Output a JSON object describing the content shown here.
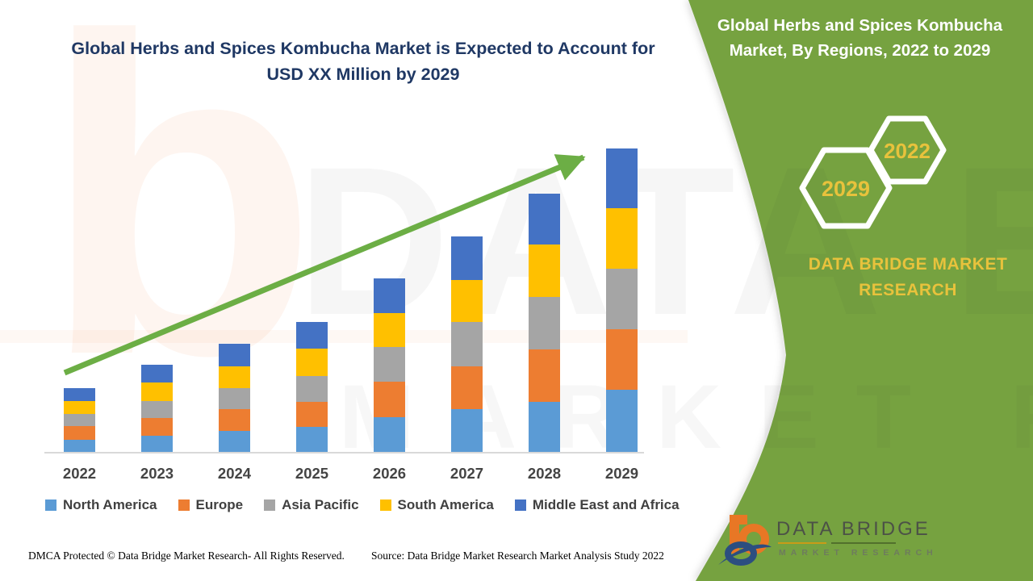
{
  "page": {
    "background_color": "#FFFFFF",
    "title_line1": "Global Herbs and Spices Kombucha Market is Expected to Account for",
    "title_line2": "USD XX Million by 2029",
    "title_color": "#1F3864",
    "footer_dmca": "DMCA Protected © Data Bridge Market Research- All Rights Reserved.",
    "footer_source": "Source: Data Bridge Market Research Market Analysis Study 2022"
  },
  "side_panel": {
    "background_color": "#76A240",
    "title_line1": "Global Herbs and Spices Kombucha",
    "title_line2": "Market, By Regions, 2022 to 2029",
    "hexagons": [
      {
        "label": "2029"
      },
      {
        "label": "2022"
      }
    ],
    "hexagon_label_color": "#E8C23C",
    "brand_text_line1": "DATA BRIDGE MARKET",
    "brand_text_line2": "RESEARCH",
    "brand_text_color": "#E8C23C"
  },
  "logo": {
    "title": "DATA BRIDGE",
    "subtitle": "MARKET RESEARCH"
  },
  "watermark": {
    "big_letter": "b",
    "line1": "DATA BRIDGE",
    "line2": "MARKET RESEARCH"
  },
  "chart_data": {
    "type": "bar",
    "stacked": true,
    "title": "",
    "xlabel": "",
    "ylabel": "",
    "y_axis_visible": false,
    "values_unit": "relative height units (no value axis or data labels shown in figure)",
    "legend_position": "bottom",
    "grid": false,
    "categories": [
      "2022",
      "2023",
      "2024",
      "2025",
      "2026",
      "2027",
      "2028",
      "2029"
    ],
    "series": [
      {
        "name": "North America",
        "color": "#5B9BD5",
        "values": [
          15,
          20,
          26,
          31,
          43,
          53,
          62,
          77
        ]
      },
      {
        "name": "Europe",
        "color": "#ED7D31",
        "values": [
          17,
          22,
          27,
          31,
          44,
          53,
          65,
          75
        ]
      },
      {
        "name": "Asia Pacific",
        "color": "#A5A5A5",
        "values": [
          15,
          21,
          26,
          32,
          43,
          55,
          65,
          75
        ]
      },
      {
        "name": "South America",
        "color": "#FFC000",
        "values": [
          16,
          23,
          27,
          34,
          42,
          52,
          65,
          75
        ]
      },
      {
        "name": "Middle East and Africa",
        "color": "#4472C4",
        "values": [
          16,
          22,
          28,
          33,
          43,
          54,
          63,
          74
        ]
      }
    ],
    "totals": [
      79,
      108,
      134,
      161,
      215,
      267,
      320,
      376
    ],
    "trend_arrow": {
      "from_category": "2022",
      "to_category": "2029",
      "direction": "up",
      "color": "#6CAE45"
    }
  }
}
